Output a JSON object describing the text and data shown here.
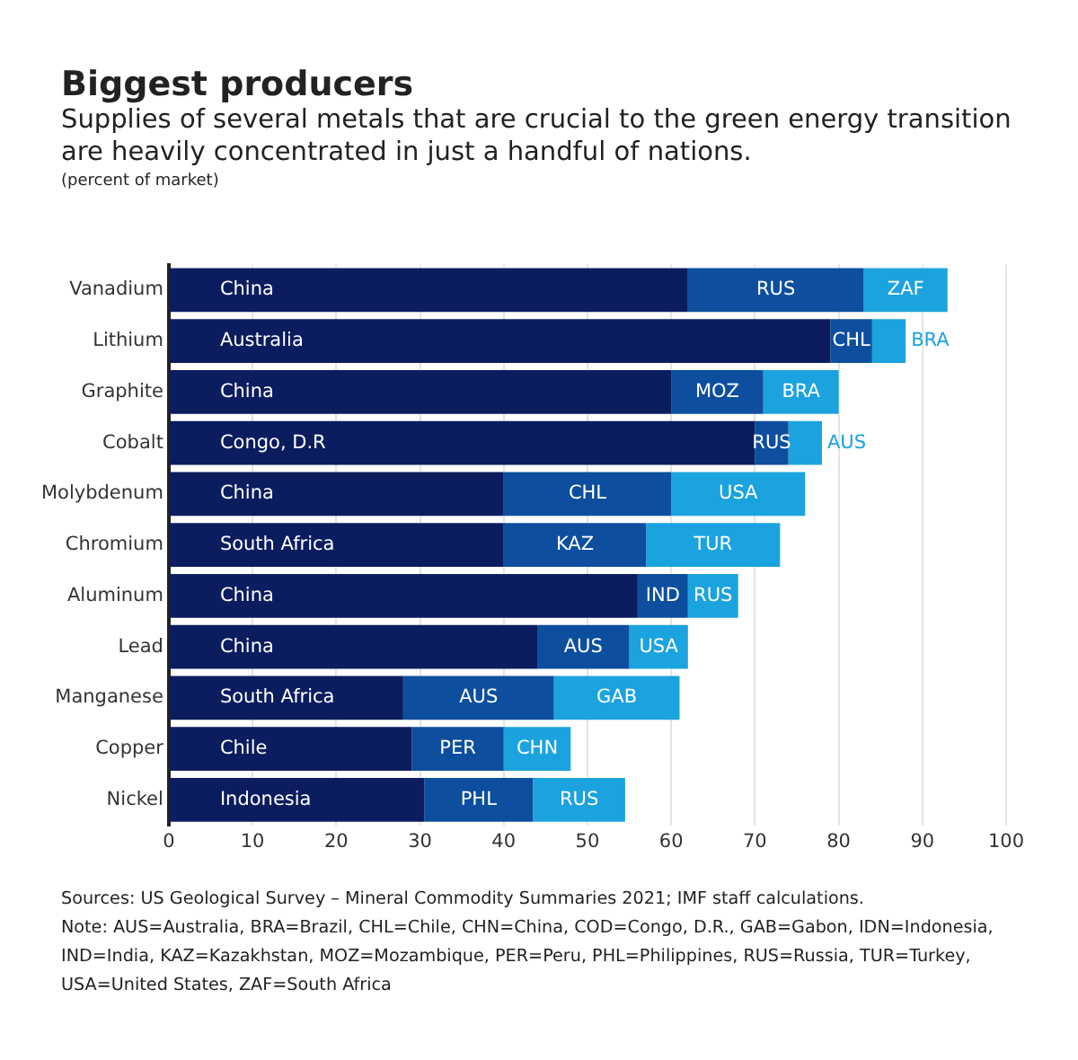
{
  "chart_data": {
    "type": "bar",
    "orientation": "horizontal",
    "stacked": true,
    "title": "Biggest producers",
    "subtitle": "Supplies of several metals that are crucial to the green energy transition are heavily concentrated in just a handful of nations.",
    "categories": [
      "Vanadium",
      "Lithium",
      "Graphite",
      "Cobalt",
      "Molybdenum",
      "Chromium",
      "Aluminum",
      "Lead",
      "Manganese",
      "Copper",
      "Nickel"
    ],
    "series": [
      {
        "color": "#0b1d5e",
        "values": [
          62,
          79,
          60,
          70,
          40,
          40,
          56,
          44,
          28,
          29,
          30.5
        ],
        "value_labels": [
          "China",
          "Australia",
          "China",
          "Congo, D.R",
          "China",
          "South Africa",
          "China",
          "China",
          "South Africa",
          "Chile",
          "Indonesia"
        ]
      },
      {
        "color": "#0d4f9e",
        "values": [
          21,
          5,
          11,
          4,
          20,
          17,
          6,
          11,
          18,
          11,
          13
        ],
        "value_labels": [
          "RUS",
          "CHL",
          "MOZ",
          "RUS",
          "CHL",
          "KAZ",
          "IND",
          "AUS",
          "AUS",
          "PER",
          "PHL"
        ]
      },
      {
        "color": "#1ba3df",
        "values": [
          10,
          4,
          9,
          4,
          16,
          16,
          6,
          7,
          15,
          8,
          11
        ],
        "value_labels": [
          "ZAF",
          "BRA",
          "BRA",
          "AUS",
          "USA",
          "TUR",
          "RUS",
          "USA",
          "GAB",
          "CHN",
          "RUS"
        ]
      }
    ],
    "xlim": [
      0,
      100
    ],
    "xticks": [
      0,
      10,
      20,
      30,
      40,
      50,
      60,
      70,
      80,
      90,
      100
    ],
    "grid": "x",
    "legend": false,
    "annotations": [
      "(percent of market)",
      "Sources: US Geological Survey – Mineral Commodity Summaries 2021; IMF staff calculations.",
      "Note: AUS=Australia, BRA=Brazil, CHL=Chile, CHN=China, COD=Congo, D.R., GAB=Gabon, IDN=Indonesia, IND=India, KAZ=Kazakhstan, MOZ=Mozambique, PER=Peru, PHL=Philippines, RUS=Russia, TUR=Turkey, USA=United States, ZAF=South Africa"
    ]
  }
}
